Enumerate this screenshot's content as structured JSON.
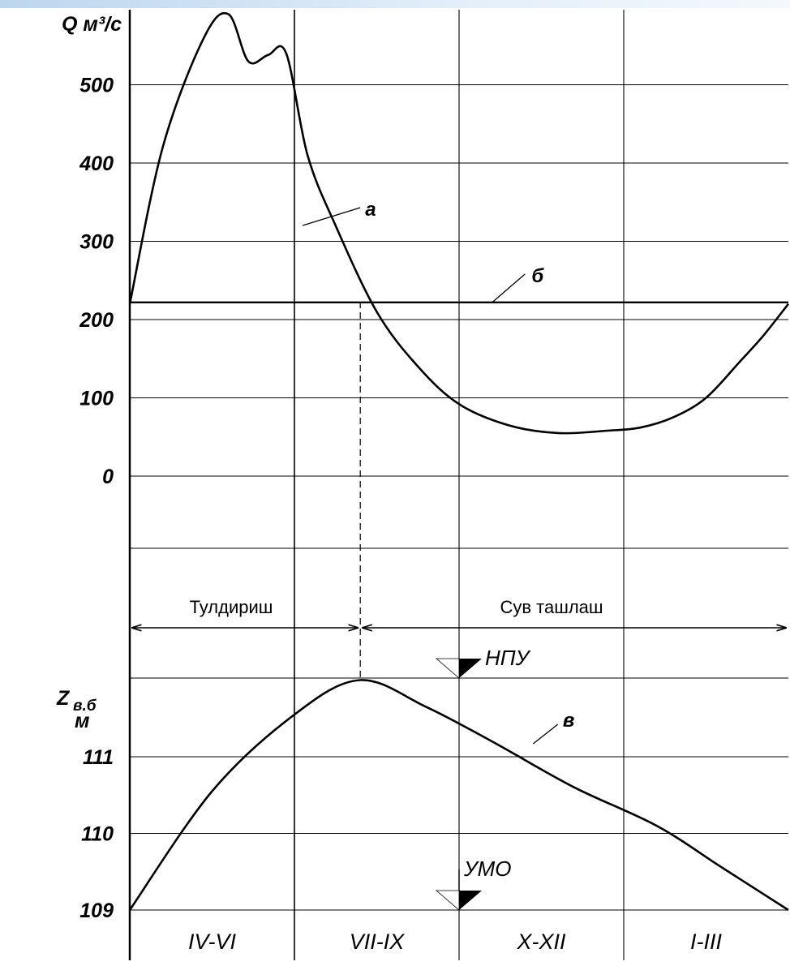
{
  "chart_data": [
    {
      "type": "line",
      "yunit": "Q м³/с",
      "ytick_labels": [
        "500",
        "400",
        "300",
        "200",
        "100",
        "0"
      ],
      "ytick_values": [
        500,
        400,
        300,
        200,
        100,
        0
      ],
      "ylim": [
        -100,
        600
      ],
      "x_periods": [
        "IV-VI",
        "VII-IX",
        "X-XII",
        "I-III"
      ],
      "grid": true,
      "series": [
        {
          "name": "а",
          "x": [
            0.0,
            0.2,
            0.45,
            0.6,
            0.72,
            0.84,
            0.95,
            1.08,
            1.25,
            1.5,
            1.75,
            2.0,
            2.3,
            2.6,
            2.9,
            3.1,
            3.3,
            3.5,
            3.7,
            3.85,
            4.0
          ],
          "values": [
            220,
            420,
            560,
            590,
            530,
            538,
            540,
            410,
            320,
            210,
            140,
            92,
            65,
            55,
            58,
            62,
            75,
            100,
            145,
            180,
            220
          ]
        },
        {
          "name": "б",
          "x": [
            0,
            4
          ],
          "values": [
            222,
            222
          ]
        }
      ]
    },
    {
      "type": "line",
      "yunit_line1": "Z",
      "yunit_sub": "в.б",
      "yunit_line2": "м",
      "ytick_labels": [
        "111",
        "110",
        "109"
      ],
      "ytick_values": [
        111,
        110,
        109
      ],
      "ylim": [
        109,
        112
      ],
      "x_periods": [
        "IV-VI",
        "VII-IX",
        "X-XII",
        "I-III"
      ],
      "grid": true,
      "series": [
        {
          "name": "в",
          "x": [
            0.0,
            0.5,
            1.0,
            1.4,
            1.8,
            2.2,
            2.7,
            3.2,
            3.6,
            4.0
          ],
          "values": [
            109.0,
            110.55,
            111.55,
            112.0,
            111.65,
            111.2,
            110.6,
            110.1,
            109.55,
            109.0
          ]
        }
      ],
      "markers": [
        {
          "label": "НПУ",
          "x": 2.0,
          "level": 112.0
        },
        {
          "label": "УМО",
          "x": 2.0,
          "level": 109.0
        }
      ]
    }
  ],
  "phases": [
    {
      "label": "Тулдириш",
      "x_from": 0.0,
      "x_to": 1.4
    },
    {
      "label": "Сув ташлаш",
      "x_from": 1.4,
      "x_to": 4.0
    }
  ]
}
